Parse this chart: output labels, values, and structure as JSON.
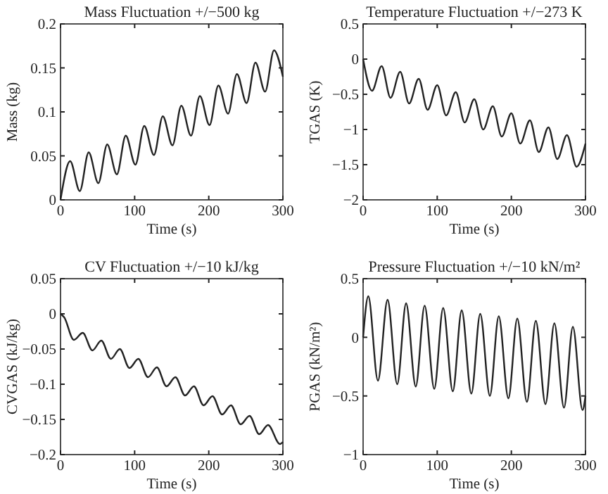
{
  "chart_data": [
    {
      "type": "line",
      "title": "Mass Fluctuation +/−500 kg",
      "xlabel": "Time (s)",
      "ylabel": "Mass (kg)",
      "color": "#222222",
      "xlim": [
        0,
        300
      ],
      "xticks": [
        0,
        100,
        200,
        300
      ],
      "ylim": [
        0,
        0.2
      ],
      "yticks": [
        0,
        0.05,
        0.1,
        0.15,
        0.2
      ],
      "x": [
        0,
        13,
        26,
        38,
        51,
        63,
        76,
        88,
        101,
        113,
        126,
        138,
        151,
        163,
        176,
        188,
        201,
        213,
        226,
        238,
        251,
        263,
        276,
        288,
        300
      ],
      "values": [
        0,
        0.044,
        0.01,
        0.054,
        0.019,
        0.063,
        0.029,
        0.073,
        0.04,
        0.084,
        0.051,
        0.095,
        0.062,
        0.107,
        0.073,
        0.118,
        0.085,
        0.13,
        0.098,
        0.143,
        0.11,
        0.156,
        0.123,
        0.17,
        0.14
      ]
    },
    {
      "type": "line",
      "title": "Temperature Fluctuation +/−273 K",
      "xlabel": "Time (s)",
      "ylabel": "TGAS (K)",
      "color": "#222222",
      "xlim": [
        0,
        300
      ],
      "xticks": [
        0,
        100,
        200,
        300
      ],
      "ylim": [
        -2,
        0.5
      ],
      "yticks": [
        -2,
        -1.5,
        -1,
        -0.5,
        0,
        0.5
      ],
      "x": [
        0,
        12,
        25,
        37,
        50,
        62,
        75,
        87,
        100,
        112,
        125,
        137,
        150,
        162,
        175,
        187,
        200,
        212,
        225,
        237,
        250,
        262,
        275,
        288,
        300
      ],
      "values": [
        0,
        -0.45,
        -0.1,
        -0.55,
        -0.18,
        -0.63,
        -0.28,
        -0.72,
        -0.37,
        -0.8,
        -0.47,
        -0.9,
        -0.57,
        -1.0,
        -0.67,
        -1.1,
        -0.77,
        -1.2,
        -0.87,
        -1.32,
        -0.97,
        -1.42,
        -1.08,
        -1.53,
        -1.2
      ]
    },
    {
      "type": "line",
      "title": "CV Fluctuation +/−10 kJ/kg",
      "xlabel": "Time (s)",
      "ylabel": "CVGAS (kJ/kg)",
      "color": "#222222",
      "xlim": [
        0,
        300
      ],
      "xticks": [
        0,
        100,
        200,
        300
      ],
      "ylim": [
        -0.2,
        0.05
      ],
      "yticks": [
        -0.2,
        -0.15,
        -0.1,
        -0.05,
        0,
        0.05
      ],
      "x": [
        0,
        5,
        18,
        30,
        43,
        55,
        68,
        80,
        93,
        105,
        118,
        130,
        143,
        155,
        168,
        180,
        193,
        205,
        218,
        230,
        243,
        255,
        268,
        280,
        296,
        300
      ],
      "values": [
        0,
        -0.005,
        -0.037,
        -0.027,
        -0.052,
        -0.038,
        -0.064,
        -0.05,
        -0.077,
        -0.064,
        -0.09,
        -0.076,
        -0.103,
        -0.09,
        -0.116,
        -0.103,
        -0.13,
        -0.117,
        -0.143,
        -0.13,
        -0.157,
        -0.145,
        -0.171,
        -0.158,
        -0.185,
        -0.182
      ]
    },
    {
      "type": "line",
      "title": "Pressure Fluctuation +/−10 kN/m²",
      "xlabel": "Time (s)",
      "ylabel": "PGAS (kN/m²)",
      "color": "#222222",
      "xlim": [
        0,
        300
      ],
      "xticks": [
        0,
        100,
        200,
        300
      ],
      "ylim": [
        -1,
        0.5
      ],
      "yticks": [
        -1,
        -0.5,
        0,
        0.5
      ],
      "x": [
        0,
        7,
        20,
        33,
        46,
        58,
        71,
        83,
        96,
        108,
        121,
        133,
        146,
        158,
        171,
        183,
        196,
        208,
        221,
        233,
        246,
        258,
        271,
        283,
        296,
        300
      ],
      "values": [
        0,
        0.35,
        -0.37,
        0.32,
        -0.4,
        0.29,
        -0.42,
        0.27,
        -0.44,
        0.25,
        -0.46,
        0.23,
        -0.48,
        0.2,
        -0.5,
        0.18,
        -0.52,
        0.16,
        -0.55,
        0.14,
        -0.57,
        0.12,
        -0.6,
        0.09,
        -0.62,
        -0.5
      ]
    }
  ]
}
